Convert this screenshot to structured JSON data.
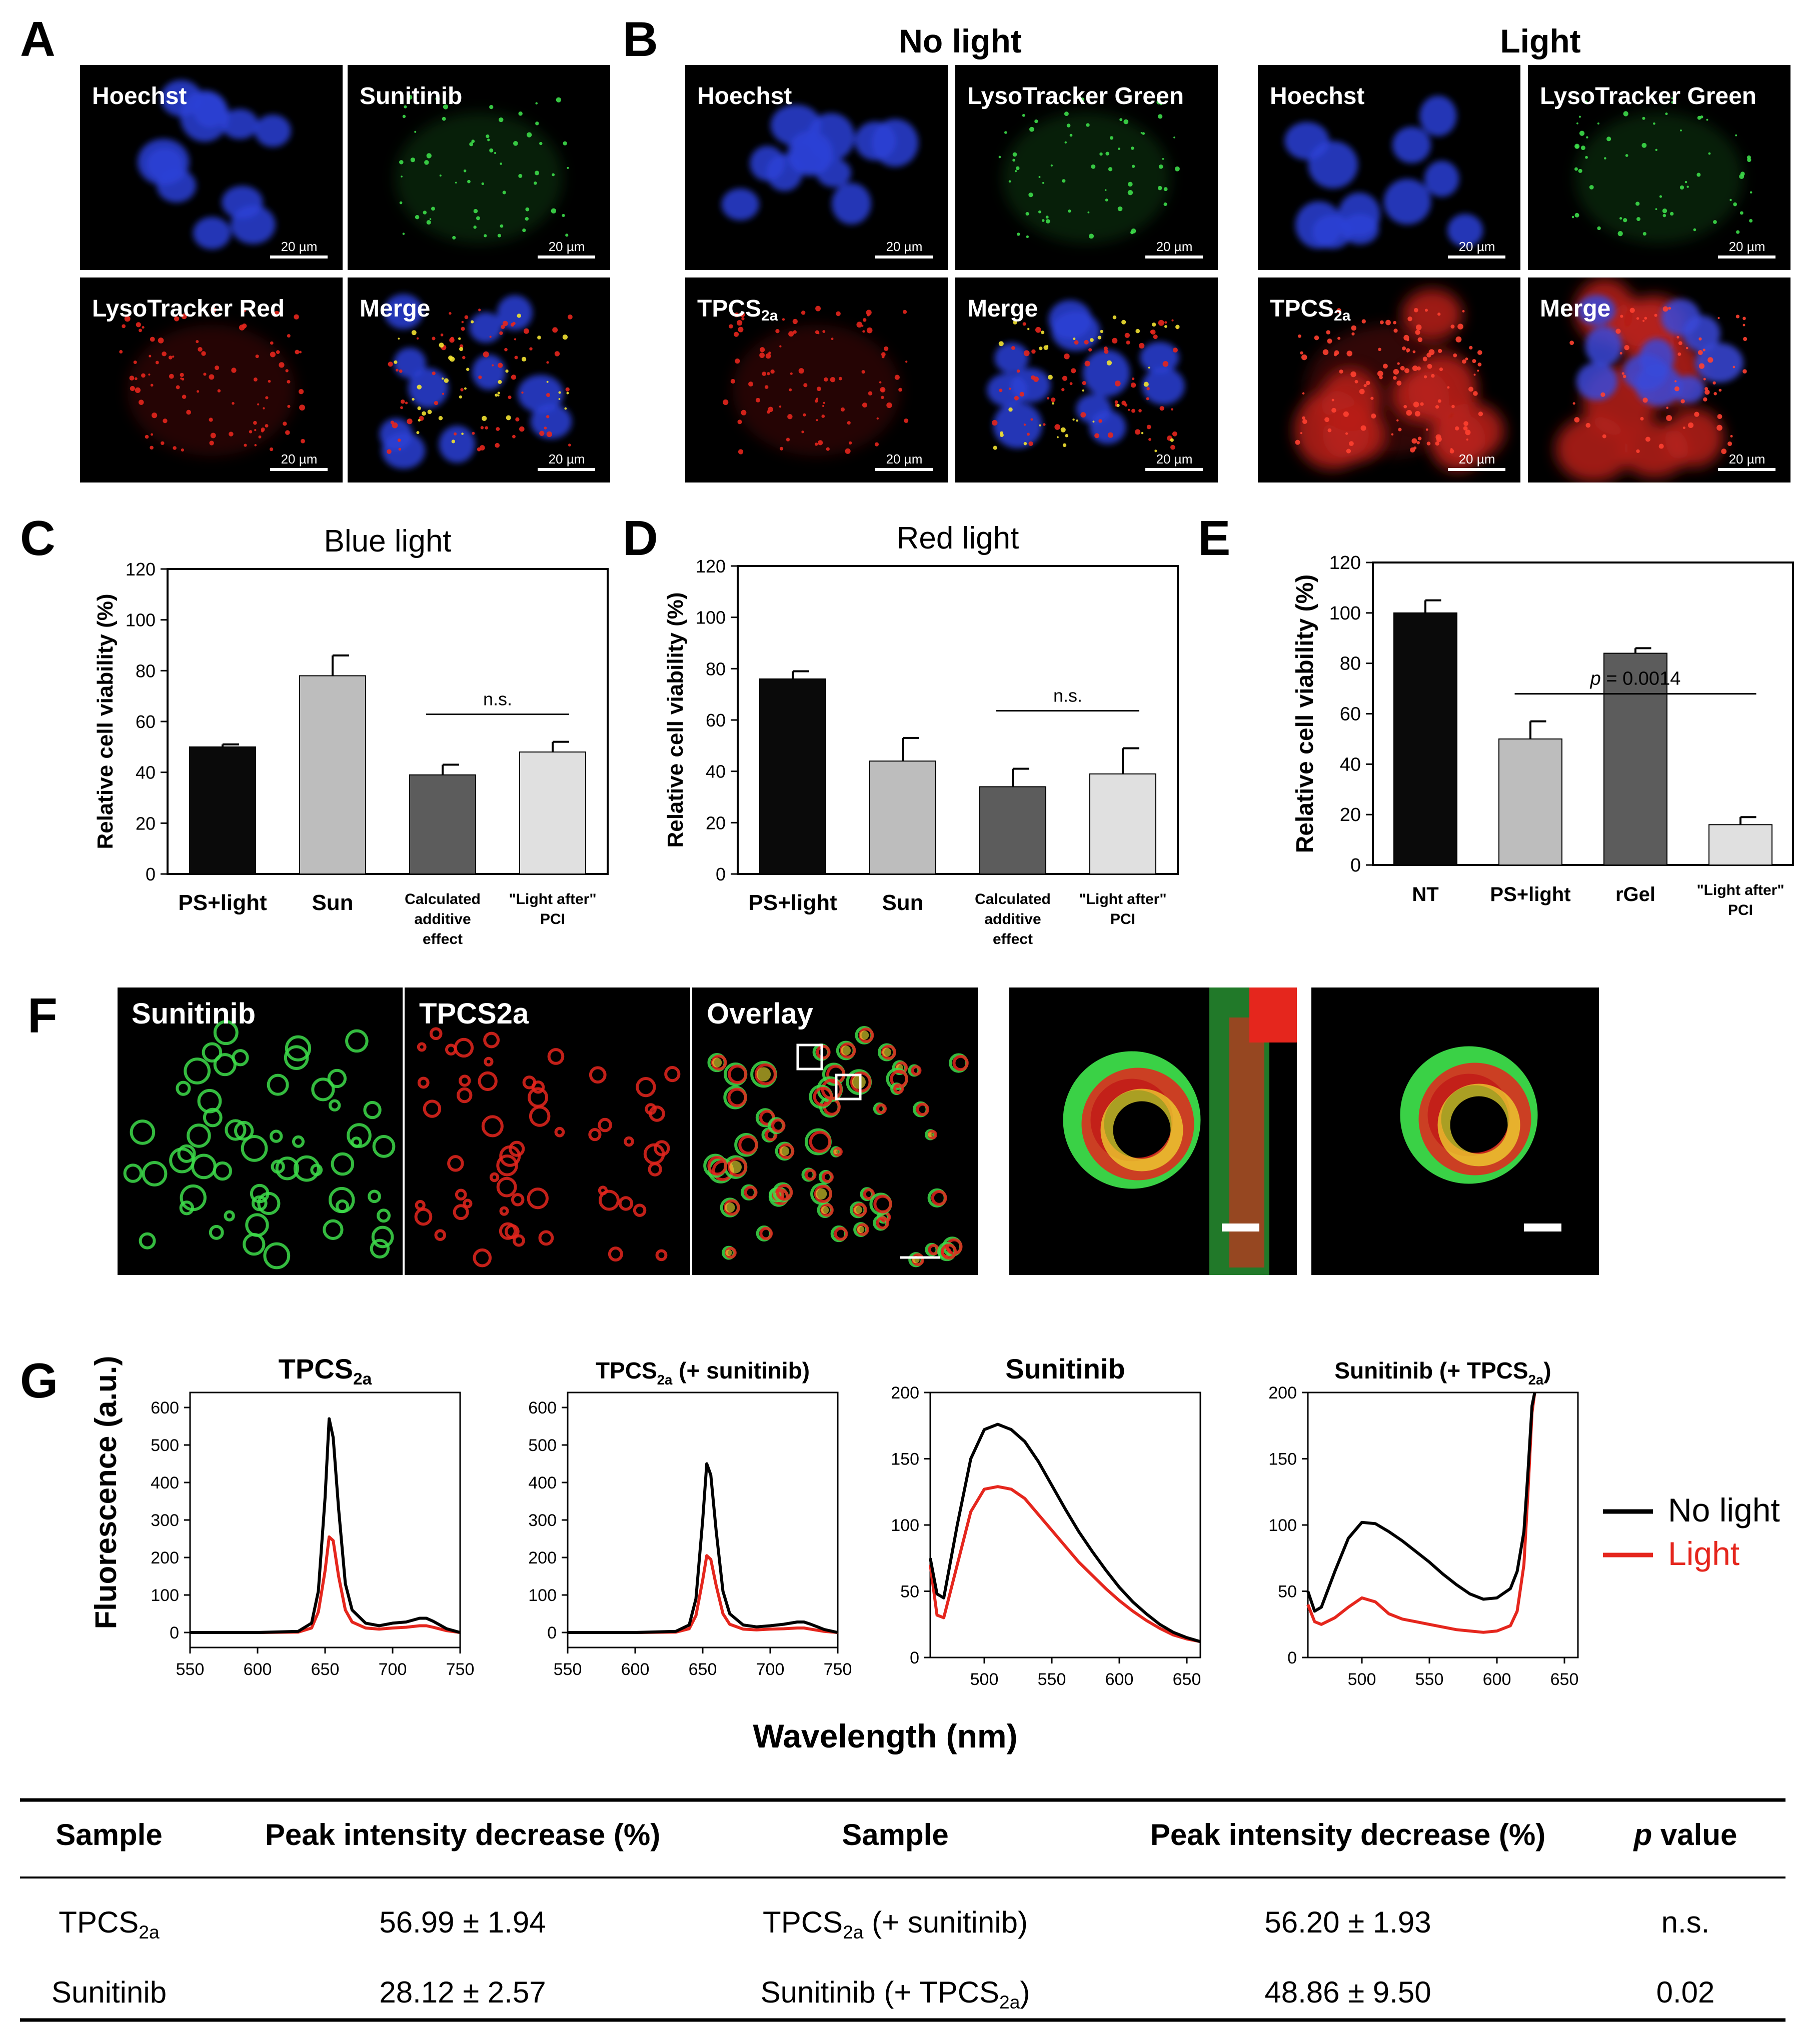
{
  "colors": {
    "hoechst": "#2a3fd6",
    "green": "#3ddc4a",
    "red": "#e5261d",
    "yellow": "#f2e232",
    "bar_black": "#0a0a0a",
    "bar_light_grey": "#bdbdbd",
    "bar_dark_grey": "#5c5c5c",
    "bar_pale_grey": "#e0e0e0",
    "no_light_line": "#000000",
    "light_line": "#e5261d"
  },
  "panels": {
    "A": "A",
    "B": "B",
    "C": "C",
    "D": "D",
    "E": "E",
    "F": "F",
    "G": "G"
  },
  "micrographs": {
    "scale_bar_label": "20 µm",
    "panelA": [
      "Hoechst",
      "Sunitinib",
      "LysoTracker Red",
      "Merge"
    ],
    "panelB_headers": [
      "No light",
      "Light"
    ],
    "panelB": [
      "Hoechst",
      "LysoTracker Green",
      "TPCS",
      "Merge"
    ],
    "tpcs_subscript": "2a",
    "panelF": [
      "Sunitinib",
      "TPCS2a",
      "Overlay"
    ]
  },
  "chart_data": [
    {
      "id": "C",
      "type": "bar",
      "title": "Blue light",
      "ylabel": "Relative cell viability (%)",
      "xlabel": "",
      "ylim": [
        0,
        120
      ],
      "yticks": [
        0,
        20,
        40,
        60,
        80,
        100,
        120
      ],
      "categories": [
        "PS+light",
        "Sun",
        "Calculated additive effect",
        "\"Light after\" PCI"
      ],
      "category_lines": [
        [
          "PS+light"
        ],
        [
          "Sun"
        ],
        [
          "Calculated",
          "additive",
          "effect"
        ],
        [
          "\"Light after\"",
          "PCI"
        ]
      ],
      "values": [
        50,
        78,
        39,
        48
      ],
      "errors": [
        1,
        8,
        4,
        4
      ],
      "annotation": "n.s."
    },
    {
      "id": "D",
      "type": "bar",
      "title": "Red light",
      "ylabel": "Relative cell viability (%)",
      "xlabel": "",
      "ylim": [
        0,
        120
      ],
      "yticks": [
        0,
        20,
        40,
        60,
        80,
        100,
        120
      ],
      "categories": [
        "PS+light",
        "Sun",
        "Calculated additive effect",
        "\"Light after\" PCI"
      ],
      "category_lines": [
        [
          "PS+light"
        ],
        [
          "Sun"
        ],
        [
          "Calculated",
          "additive",
          "effect"
        ],
        [
          "\"Light after\"",
          "PCI"
        ]
      ],
      "values": [
        76,
        44,
        34,
        39
      ],
      "errors": [
        3,
        9,
        7,
        10
      ],
      "annotation": "n.s."
    },
    {
      "id": "E",
      "type": "bar",
      "title": "",
      "ylabel": "Relative cell viability (%)",
      "xlabel": "",
      "ylim": [
        0,
        120
      ],
      "yticks": [
        0,
        20,
        40,
        60,
        80,
        100,
        120
      ],
      "categories": [
        "NT",
        "PS+light",
        "rGel",
        "\"Light after\" PCI"
      ],
      "category_lines": [
        [
          "NT"
        ],
        [
          "PS+light"
        ],
        [
          "rGel"
        ],
        [
          "\"Light after\"",
          "PCI"
        ]
      ],
      "values": [
        100,
        50,
        84,
        16
      ],
      "errors": [
        5,
        7,
        2,
        3
      ],
      "annotation": "p = 0.0014"
    },
    {
      "id": "G1",
      "type": "line",
      "title": "TPCS",
      "title_sub": "2a",
      "xlim": [
        550,
        750
      ],
      "ylim": [
        0,
        600
      ],
      "xticks": [
        550,
        600,
        650,
        700,
        750
      ],
      "yticks": [
        0,
        100,
        200,
        300,
        400,
        500,
        600
      ],
      "series": [
        {
          "name": "No light",
          "x": [
            550,
            600,
            630,
            640,
            645,
            650,
            653,
            656,
            660,
            665,
            670,
            680,
            690,
            700,
            710,
            720,
            725,
            730,
            740,
            750
          ],
          "y": [
            0,
            0,
            3,
            25,
            110,
            360,
            570,
            520,
            330,
            130,
            60,
            25,
            18,
            25,
            28,
            38,
            38,
            30,
            10,
            0
          ]
        },
        {
          "name": "Light",
          "x": [
            550,
            600,
            630,
            640,
            645,
            650,
            653,
            656,
            660,
            665,
            670,
            680,
            690,
            700,
            710,
            720,
            725,
            730,
            740,
            750
          ],
          "y": [
            0,
            0,
            1,
            12,
            55,
            165,
            255,
            245,
            150,
            60,
            28,
            12,
            9,
            12,
            14,
            18,
            18,
            14,
            5,
            0
          ]
        }
      ]
    },
    {
      "id": "G2",
      "type": "line",
      "title": "TPCS",
      "title_sub": "2a",
      "title_suffix": " (+ sunitinib)",
      "xlim": [
        550,
        750
      ],
      "ylim": [
        0,
        600
      ],
      "xticks": [
        550,
        600,
        650,
        700,
        750
      ],
      "yticks": [
        0,
        100,
        200,
        300,
        400,
        500,
        600
      ],
      "series": [
        {
          "name": "No light",
          "x": [
            550,
            600,
            630,
            640,
            645,
            650,
            653,
            656,
            660,
            665,
            670,
            680,
            690,
            700,
            710,
            720,
            725,
            730,
            740,
            750
          ],
          "y": [
            0,
            0,
            3,
            20,
            90,
            300,
            450,
            420,
            270,
            110,
            50,
            20,
            15,
            18,
            22,
            28,
            28,
            22,
            8,
            0
          ]
        },
        {
          "name": "Light",
          "x": [
            550,
            600,
            630,
            640,
            645,
            650,
            653,
            656,
            660,
            665,
            670,
            680,
            690,
            700,
            710,
            720,
            725,
            730,
            740,
            750
          ],
          "y": [
            0,
            0,
            1,
            10,
            45,
            140,
            205,
            195,
            125,
            50,
            22,
            9,
            7,
            9,
            10,
            12,
            12,
            9,
            3,
            0
          ]
        }
      ]
    },
    {
      "id": "G3",
      "type": "line",
      "title": "Sunitinib",
      "xlim": [
        460,
        660
      ],
      "ylim": [
        0,
        200
      ],
      "xticks": [
        500,
        550,
        600,
        650
      ],
      "yticks": [
        0,
        50,
        100,
        150,
        200
      ],
      "series": [
        {
          "name": "No light",
          "x": [
            460,
            465,
            470,
            480,
            490,
            500,
            510,
            520,
            530,
            540,
            550,
            560,
            570,
            580,
            590,
            600,
            610,
            620,
            630,
            640,
            650,
            660
          ],
          "y": [
            75,
            48,
            45,
            100,
            150,
            172,
            176,
            172,
            163,
            148,
            130,
            112,
            95,
            80,
            66,
            53,
            42,
            33,
            25,
            19,
            15,
            12
          ]
        },
        {
          "name": "Light",
          "x": [
            460,
            465,
            470,
            480,
            490,
            500,
            510,
            520,
            530,
            540,
            550,
            560,
            570,
            580,
            590,
            600,
            610,
            620,
            630,
            640,
            650,
            660
          ],
          "y": [
            70,
            32,
            30,
            70,
            110,
            127,
            129,
            127,
            120,
            108,
            96,
            84,
            72,
            62,
            52,
            43,
            35,
            28,
            22,
            17,
            14,
            12
          ]
        }
      ]
    },
    {
      "id": "G4",
      "type": "line",
      "title": "Sunitinib (+ TPCS",
      "title_sub": "2a",
      "title_suffix": ")",
      "xlim": [
        460,
        660
      ],
      "ylim": [
        0,
        200
      ],
      "xticks": [
        500,
        550,
        600,
        650
      ],
      "yticks": [
        0,
        50,
        100,
        150,
        200
      ],
      "series": [
        {
          "name": "No light",
          "x": [
            460,
            465,
            470,
            480,
            490,
            500,
            510,
            520,
            530,
            540,
            550,
            560,
            570,
            580,
            590,
            600,
            610,
            615,
            620,
            623,
            626,
            628
          ],
          "y": [
            50,
            35,
            38,
            65,
            90,
            102,
            101,
            95,
            88,
            80,
            72,
            63,
            55,
            48,
            44,
            45,
            52,
            65,
            95,
            140,
            190,
            200
          ]
        },
        {
          "name": "Light",
          "x": [
            460,
            465,
            470,
            480,
            490,
            500,
            510,
            520,
            530,
            540,
            550,
            560,
            570,
            580,
            590,
            600,
            610,
            615,
            620,
            623,
            626,
            628
          ],
          "y": [
            40,
            27,
            25,
            30,
            38,
            45,
            42,
            33,
            29,
            27,
            25,
            23,
            21,
            20,
            19,
            20,
            24,
            35,
            70,
            125,
            185,
            200
          ]
        }
      ]
    }
  ],
  "spectra_axes": {
    "ylabel": "Fluorescence (a.u.)",
    "xlabel": "Wavelength (nm)",
    "legend": [
      "No light",
      "Light"
    ]
  },
  "table": {
    "headers": [
      "Sample",
      "Peak intensity decrease (%)",
      "Sample",
      "Peak intensity decrease (%)",
      "p value"
    ],
    "header_p_italic": "p",
    "header_p_rest": " value",
    "rows": [
      {
        "sample1_base": "TPCS",
        "sample1_sub": "2a",
        "sample1_suffix": "",
        "decrease1": "56.99 ± 1.94",
        "sample2_base": "TPCS",
        "sample2_sub": "2a",
        "sample2_suffix": " (+ sunitinib)",
        "decrease2": "56.20 ± 1.93",
        "p": "n.s."
      },
      {
        "sample1_base": "Sunitinib",
        "sample1_sub": "",
        "sample1_suffix": "",
        "decrease1": "28.12 ± 2.57",
        "sample2_base": "Sunitinib (+ TPCS",
        "sample2_sub": "2a",
        "sample2_suffix": ")",
        "decrease2": "48.86 ± 9.50",
        "p": "0.02"
      }
    ]
  }
}
